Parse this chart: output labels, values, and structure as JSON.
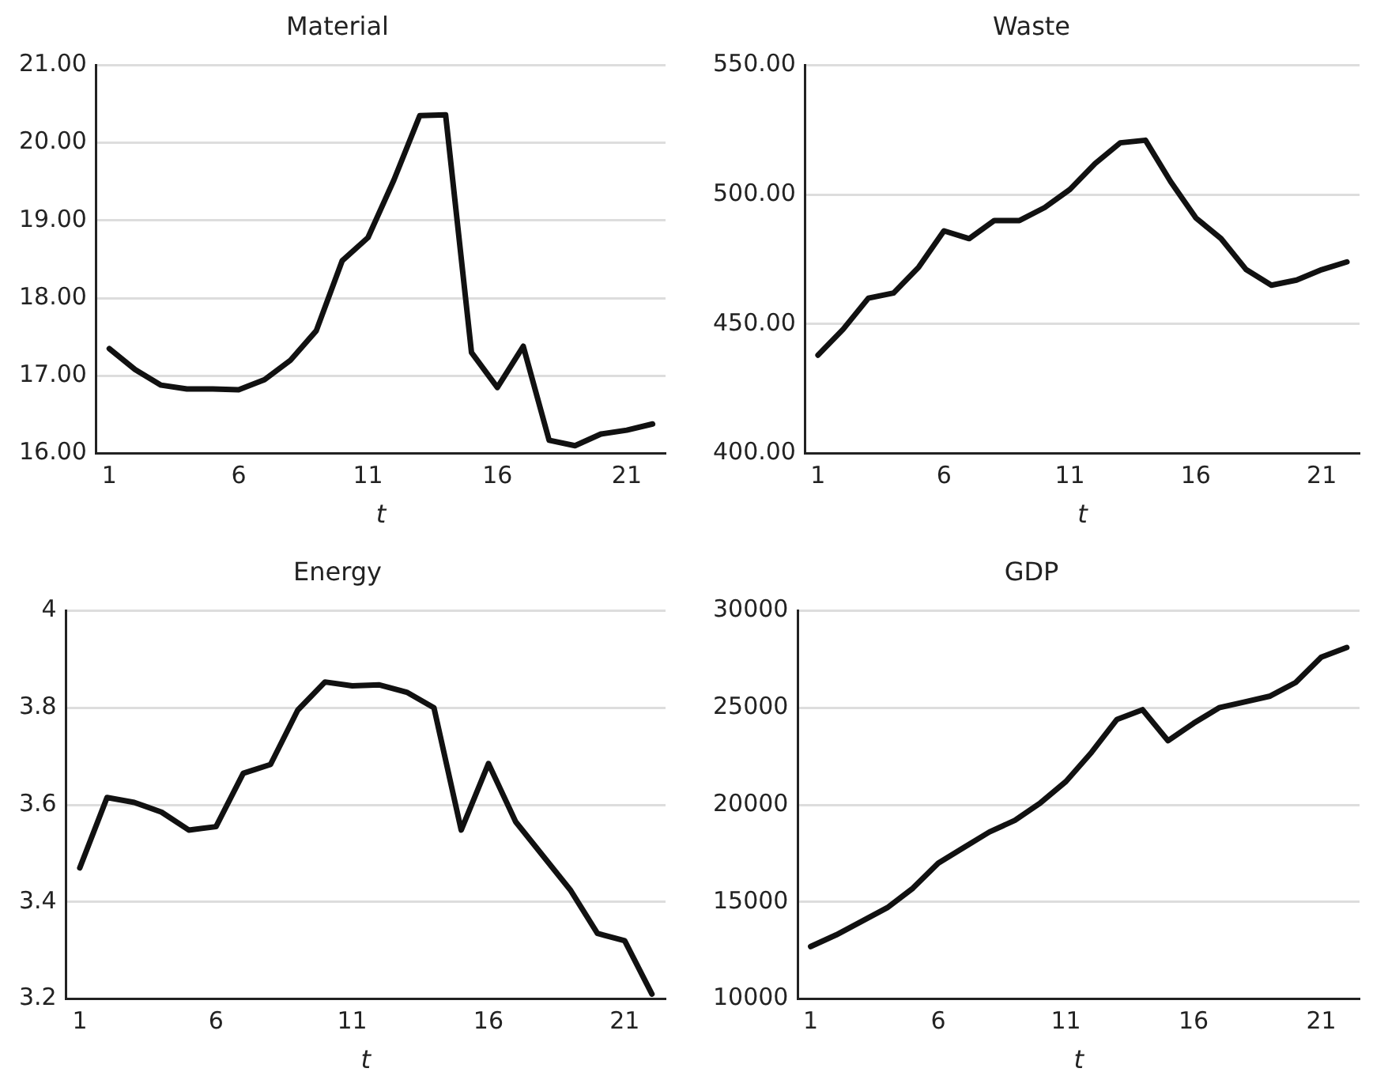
{
  "chart_data": [
    {
      "type": "line",
      "title": "Material",
      "xlabel": "t",
      "x": [
        1,
        2,
        3,
        4,
        5,
        6,
        7,
        8,
        9,
        10,
        11,
        12,
        13,
        14,
        15,
        16,
        17,
        18,
        19,
        20,
        21,
        22
      ],
      "xlim": [
        0.5,
        22.5
      ],
      "xticks": [
        1,
        6,
        11,
        16,
        21
      ],
      "series": [
        {
          "color": "#111111",
          "values": [
            17.35,
            17.08,
            16.88,
            16.83,
            16.83,
            16.82,
            16.95,
            17.2,
            17.58,
            18.48,
            18.78,
            19.52,
            20.35,
            20.36,
            17.3,
            16.85,
            17.38,
            16.17,
            16.1,
            16.25,
            16.3,
            16.38
          ]
        }
      ],
      "ylim": [
        16,
        21
      ],
      "yticks": [
        {
          "value": 16,
          "label": "16.00"
        },
        {
          "value": 17,
          "label": "17.00"
        },
        {
          "value": 18,
          "label": "18.00"
        },
        {
          "value": 19,
          "label": "19.00"
        },
        {
          "value": 20,
          "label": "20.00"
        },
        {
          "value": 21,
          "label": "21.00"
        }
      ],
      "grid": "y",
      "legend": false,
      "marker": "none",
      "line_style": "solid"
    },
    {
      "type": "line",
      "title": "Waste",
      "xlabel": "t",
      "x": [
        1,
        2,
        3,
        4,
        5,
        6,
        7,
        8,
        9,
        10,
        11,
        12,
        13,
        14,
        15,
        16,
        17,
        18,
        19,
        20,
        21,
        22
      ],
      "xlim": [
        0.5,
        22.5
      ],
      "xticks": [
        1,
        6,
        11,
        16,
        21
      ],
      "series": [
        {
          "color": "#111111",
          "values": [
            438,
            448,
            460,
            462,
            472,
            486,
            483,
            490,
            490,
            495,
            502,
            512,
            520,
            521,
            505,
            491,
            483,
            471,
            465,
            467,
            471,
            474
          ]
        }
      ],
      "ylim": [
        400,
        550
      ],
      "yticks": [
        {
          "value": 400,
          "label": "400.00"
        },
        {
          "value": 450,
          "label": "450.00"
        },
        {
          "value": 500,
          "label": "500.00"
        },
        {
          "value": 550,
          "label": "550.00"
        }
      ],
      "grid": "y",
      "legend": false,
      "marker": "none",
      "line_style": "solid"
    },
    {
      "type": "line",
      "title": "Energy",
      "xlabel": "t",
      "x": [
        1,
        2,
        3,
        4,
        5,
        6,
        7,
        8,
        9,
        10,
        11,
        12,
        13,
        14,
        15,
        16,
        17,
        18,
        19,
        20,
        21,
        22
      ],
      "xlim": [
        0.5,
        22.5
      ],
      "xticks": [
        1,
        6,
        11,
        16,
        21
      ],
      "series": [
        {
          "color": "#111111",
          "values": [
            3.47,
            3.615,
            3.605,
            3.585,
            3.548,
            3.555,
            3.665,
            3.683,
            3.795,
            3.853,
            3.845,
            3.847,
            3.832,
            3.8,
            3.548,
            3.685,
            3.565,
            3.495,
            3.425,
            3.335,
            3.32,
            3.21
          ]
        }
      ],
      "ylim": [
        3.2,
        4
      ],
      "yticks": [
        3.2,
        3.4,
        3.6,
        3.8,
        4
      ],
      "grid": "y",
      "legend": false,
      "marker": "none",
      "line_style": "solid"
    },
    {
      "type": "line",
      "title": "GDP",
      "xlabel": "t",
      "x": [
        1,
        2,
        3,
        4,
        5,
        6,
        7,
        8,
        9,
        10,
        11,
        12,
        13,
        14,
        15,
        16,
        17,
        18,
        19,
        20,
        21,
        22
      ],
      "xlim": [
        0.5,
        22.5
      ],
      "xticks": [
        1,
        6,
        11,
        16,
        21
      ],
      "series": [
        {
          "color": "#111111",
          "values": [
            12700,
            13300,
            14000,
            14700,
            15700,
            17000,
            17800,
            18600,
            19200,
            20100,
            21200,
            22700,
            24400,
            24900,
            23300,
            24200,
            25000,
            25300,
            25600,
            26300,
            27600,
            28100
          ]
        }
      ],
      "ylim": [
        10000,
        30000
      ],
      "yticks": [
        10000,
        15000,
        20000,
        25000,
        30000
      ],
      "grid": "y",
      "legend": false,
      "marker": "none",
      "line_style": "solid"
    }
  ]
}
